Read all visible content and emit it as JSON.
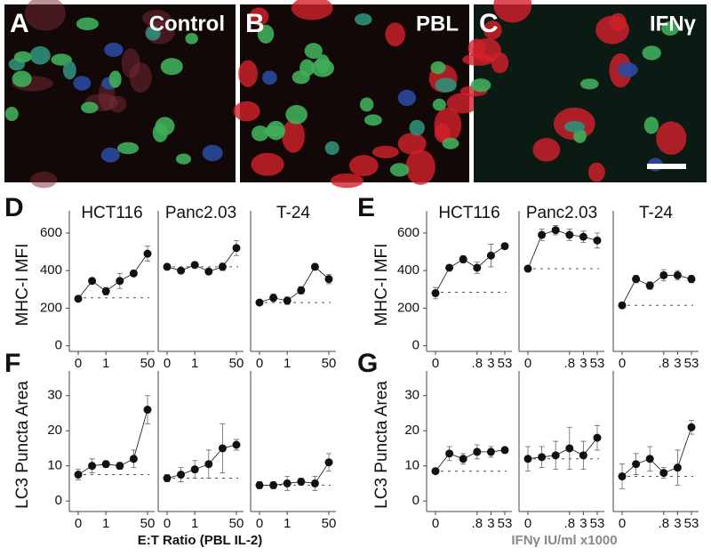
{
  "images": [
    {
      "letter": "A",
      "label": "Control"
    },
    {
      "letter": "B",
      "label": "PBL"
    },
    {
      "letter": "C",
      "label": "IFNγ"
    }
  ],
  "groups": [
    {
      "letter": "D",
      "ylabel": "MHC-I MFI"
    },
    {
      "letter": "E",
      "ylabel": "MHC-I MFI"
    },
    {
      "letter": "F",
      "ylabel": "LC3 Puncta Area",
      "xlabel": "E:T Ratio (PBL IL-2)"
    },
    {
      "letter": "G",
      "ylabel": "LC3 Puncta Area",
      "xlabel": "IFNγ IU/ml x1000"
    }
  ],
  "chart_data": [
    {
      "type": "line",
      "title": "HCT116",
      "categories": [
        "0",
        null,
        "1",
        null,
        null,
        "50"
      ],
      "values": [
        250,
        345,
        290,
        345,
        385,
        490
      ],
      "errors": [
        10,
        15,
        20,
        40,
        15,
        40
      ],
      "baseline": 255,
      "color": "#111111",
      "ylim": [
        -30,
        680
      ],
      "yticks": [
        0,
        200,
        400,
        600
      ]
    },
    {
      "type": "line",
      "title": "Panc2.03",
      "categories": [
        "0",
        null,
        "1",
        null,
        null,
        "50"
      ],
      "values": [
        420,
        400,
        430,
        395,
        420,
        520
      ],
      "errors": [
        15,
        10,
        15,
        15,
        20,
        40
      ],
      "baseline": 420,
      "color": "#111111",
      "ylim": [
        -30,
        680
      ]
    },
    {
      "type": "line",
      "title": "T-24",
      "categories": [
        "0",
        null,
        "1",
        null,
        null,
        "50"
      ],
      "values": [
        230,
        255,
        240,
        295,
        420,
        355
      ],
      "errors": [
        10,
        20,
        20,
        20,
        15,
        25
      ],
      "baseline": 230,
      "color": "#111111",
      "ylim": [
        -30,
        680
      ]
    },
    {
      "type": "line",
      "title": "HCT116",
      "categories": [
        "0",
        null,
        null,
        ".8",
        "3",
        "53"
      ],
      "values": [
        280,
        415,
        460,
        415,
        480,
        530
      ],
      "errors": [
        30,
        10,
        20,
        30,
        60,
        15
      ],
      "baseline": 285,
      "color": "#111111",
      "ylim": [
        -30,
        680
      ],
      "yticks": [
        0,
        200,
        400,
        600
      ]
    },
    {
      "type": "line",
      "title": "Panc2.03",
      "categories": [
        "0",
        null,
        null,
        ".8",
        "3",
        "53"
      ],
      "values": [
        410,
        590,
        615,
        590,
        580,
        560
      ],
      "errors": [
        15,
        30,
        25,
        30,
        30,
        40
      ],
      "baseline": 410,
      "color": "#111111",
      "ylim": [
        -30,
        680
      ]
    },
    {
      "type": "line",
      "title": "T-24",
      "categories": [
        "0",
        null,
        null,
        ".8",
        "3",
        "53"
      ],
      "values": [
        215,
        355,
        320,
        375,
        375,
        355
      ],
      "errors": [
        10,
        20,
        20,
        30,
        25,
        20
      ],
      "baseline": 215,
      "color": "#111111",
      "ylim": [
        -30,
        680
      ]
    },
    {
      "type": "line",
      "categories": [
        "0",
        null,
        "1",
        null,
        null,
        "50"
      ],
      "values": [
        7.5,
        10,
        10.5,
        10,
        12,
        26
      ],
      "errors": [
        1.5,
        2,
        1,
        1,
        2.5,
        4
      ],
      "baseline": 7.5,
      "color": "#111111",
      "ylim": [
        -3,
        35
      ],
      "yticks": [
        0,
        10,
        20,
        30
      ]
    },
    {
      "type": "line",
      "categories": [
        "0",
        null,
        "1",
        null,
        null,
        "50"
      ],
      "values": [
        6.5,
        7.5,
        9,
        10.5,
        15,
        16
      ],
      "errors": [
        1,
        2,
        2.5,
        4,
        7,
        1.5
      ],
      "baseline": 6.5,
      "color": "#111111",
      "ylim": [
        -3,
        35
      ]
    },
    {
      "type": "line",
      "categories": [
        "0",
        null,
        "1",
        null,
        null,
        "50"
      ],
      "values": [
        4.5,
        4.5,
        5,
        5.5,
        5,
        11
      ],
      "errors": [
        1,
        1,
        2,
        1,
        2,
        2.5
      ],
      "baseline": 4.5,
      "color": "#111111",
      "ylim": [
        -3,
        35
      ]
    },
    {
      "type": "line",
      "categories": [
        "0",
        null,
        null,
        ".8",
        "3",
        "53"
      ],
      "values": [
        8.5,
        13.5,
        12,
        14,
        14,
        14.5
      ],
      "errors": [
        0.5,
        2,
        1.5,
        2,
        1.5,
        0.5
      ],
      "baseline": 8.5,
      "color": "#111111",
      "ylim": [
        -3,
        35
      ],
      "yticks": [
        0,
        10,
        20,
        30
      ]
    },
    {
      "type": "line",
      "categories": [
        "0",
        null,
        null,
        ".8",
        "3",
        "53"
      ],
      "values": [
        12,
        12.5,
        13,
        15,
        13,
        18
      ],
      "errors": [
        3.5,
        3,
        4,
        6,
        4,
        3.5
      ],
      "baseline": 12,
      "color": "#111111",
      "ylim": [
        -3,
        35
      ]
    },
    {
      "type": "line",
      "categories": [
        "0",
        null,
        null,
        ".8",
        "3",
        "53"
      ],
      "values": [
        7,
        10.5,
        12,
        8,
        9.5,
        21
      ],
      "errors": [
        3.5,
        3,
        3.5,
        1.5,
        5,
        2
      ],
      "baseline": 7,
      "color": "#111111",
      "ylim": [
        -3,
        35
      ]
    }
  ]
}
